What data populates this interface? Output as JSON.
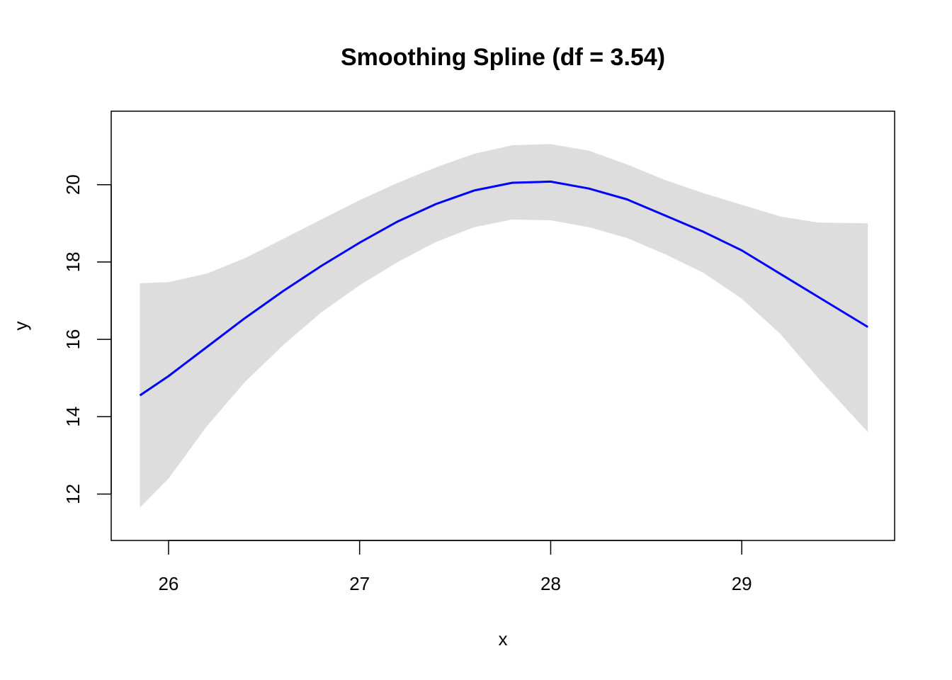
{
  "chart_data": {
    "type": "line",
    "title": "Smoothing Spline (df = 3.54)",
    "xlabel": "x",
    "ylabel": "y",
    "xlim": [
      25.7,
      29.8
    ],
    "ylim": [
      10.8,
      21.9
    ],
    "x_ticks": [
      26,
      27,
      28,
      29
    ],
    "y_ticks": [
      12,
      14,
      16,
      18,
      20
    ],
    "grid": false,
    "legend": "none",
    "series": [
      {
        "role": "fit",
        "color": "#0000ff",
        "x": [
          25.85,
          26.0,
          26.2,
          26.4,
          26.6,
          26.8,
          27.0,
          27.2,
          27.4,
          27.6,
          27.8,
          28.0,
          28.2,
          28.4,
          28.6,
          28.8,
          29.0,
          29.2,
          29.4,
          29.66
        ],
        "y": [
          14.55,
          15.05,
          15.8,
          16.55,
          17.25,
          17.9,
          18.5,
          19.05,
          19.5,
          19.85,
          20.05,
          20.08,
          19.9,
          19.62,
          19.2,
          18.78,
          18.3,
          17.7,
          17.1,
          16.32
        ]
      }
    ],
    "band": {
      "role": "confidence-band",
      "color": "#dddddd",
      "x": [
        25.85,
        26.0,
        26.2,
        26.4,
        26.6,
        26.8,
        27.0,
        27.2,
        27.4,
        27.6,
        27.8,
        28.0,
        28.2,
        28.4,
        28.6,
        28.8,
        29.0,
        29.2,
        29.4,
        29.66
      ],
      "upper": [
        17.45,
        17.48,
        17.7,
        18.1,
        18.6,
        19.1,
        19.6,
        20.05,
        20.45,
        20.8,
        21.02,
        21.05,
        20.88,
        20.52,
        20.12,
        19.78,
        19.48,
        19.18,
        19.02,
        19.0
      ],
      "lower": [
        11.65,
        12.4,
        13.75,
        14.9,
        15.85,
        16.7,
        17.4,
        18.0,
        18.52,
        18.9,
        19.1,
        19.08,
        18.9,
        18.62,
        18.2,
        17.72,
        17.05,
        16.15,
        15.0,
        13.6
      ]
    }
  }
}
